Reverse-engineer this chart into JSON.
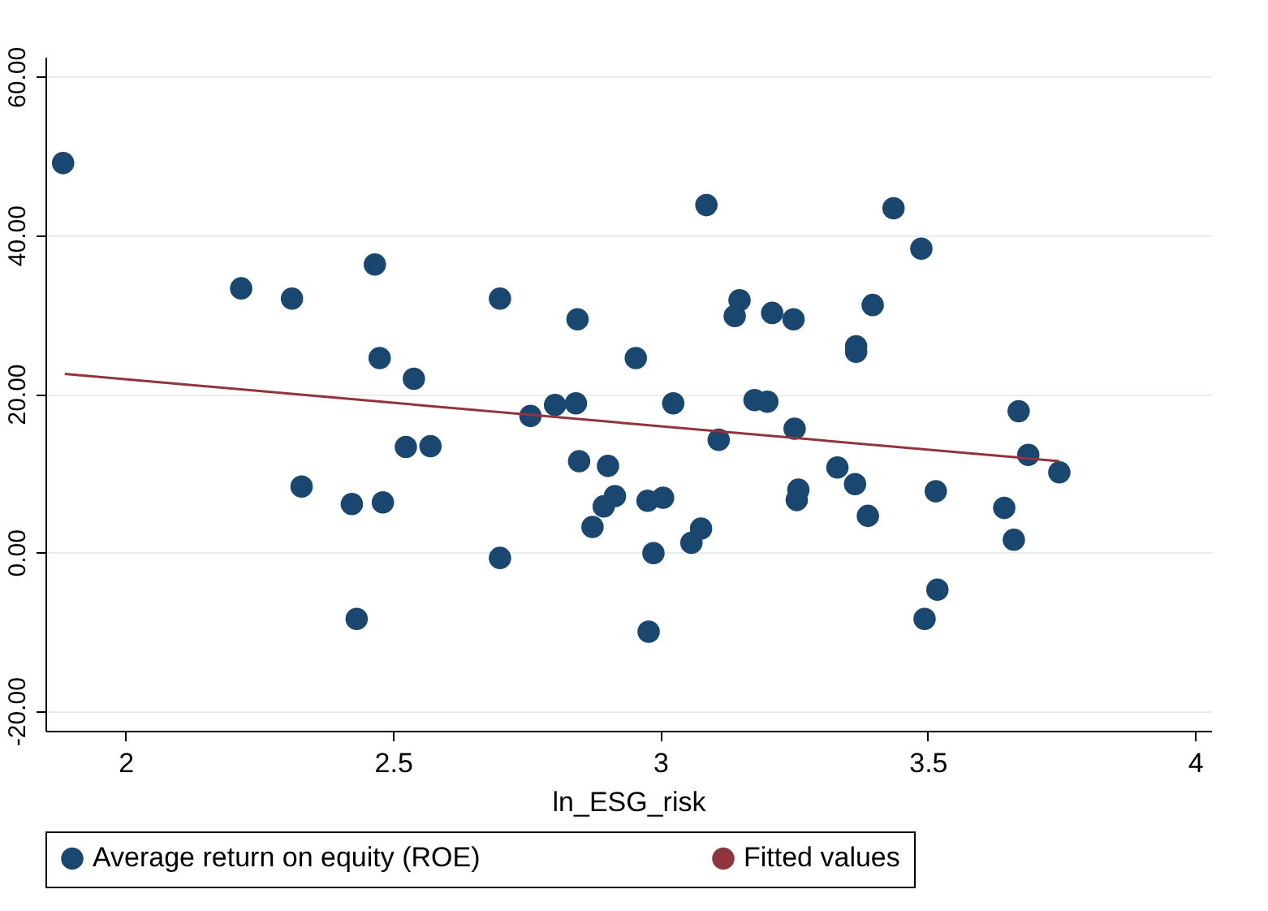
{
  "chart_data": {
    "type": "scatter",
    "xlabel": "ln_ESG_risk",
    "xlim": [
      1.85,
      4.03
    ],
    "ylim": [
      -22.5,
      62.5
    ],
    "xticks": [
      2,
      2.5,
      3,
      3.5,
      4
    ],
    "yticks": [
      {
        "value": -20,
        "label": "-20.00"
      },
      {
        "value": 0,
        "label": "0.00"
      },
      {
        "value": 20,
        "label": "20.00"
      },
      {
        "value": 40,
        "label": "40.00"
      },
      {
        "value": 60,
        "label": "60.00"
      }
    ],
    "grid": "y",
    "legend": "bottom",
    "series": [
      {
        "name": "Average return on equity (ROE)",
        "color": "#1a476f",
        "marker": "circle",
        "x": [
          1.883,
          2.216,
          2.311,
          2.329,
          2.423,
          2.432,
          2.466,
          2.475,
          2.481,
          2.539,
          2.524,
          2.57,
          2.7,
          2.7,
          2.757,
          2.803,
          2.842,
          2.845,
          2.848,
          2.873,
          2.894,
          2.902,
          2.915,
          2.954,
          2.976,
          2.978,
          2.987,
          3.005,
          3.024,
          3.058,
          3.076,
          3.109,
          3.086,
          3.148,
          3.139,
          3.209,
          3.249,
          3.176,
          3.2,
          3.251,
          3.258,
          3.255,
          3.366,
          3.366,
          3.397,
          3.436,
          3.488,
          3.331,
          3.364,
          3.388,
          3.515,
          3.518,
          3.494,
          3.643,
          3.661,
          3.67,
          3.688,
          3.746
        ],
        "values": [
          49.1,
          33.3,
          32.0,
          8.3,
          6.1,
          -8.4,
          36.3,
          24.5,
          6.3,
          21.9,
          13.3,
          13.4,
          32.0,
          -0.7,
          17.2,
          18.6,
          18.8,
          29.4,
          11.5,
          3.2,
          5.8,
          10.9,
          7.1,
          24.5,
          6.5,
          -10.0,
          -0.1,
          6.9,
          18.8,
          1.2,
          3.0,
          14.2,
          43.8,
          31.8,
          29.8,
          30.2,
          29.4,
          19.2,
          19.0,
          15.6,
          7.9,
          6.6,
          26.0,
          25.3,
          31.2,
          43.4,
          38.3,
          10.7,
          8.6,
          4.6,
          7.7,
          -4.7,
          -8.4,
          5.6,
          1.6,
          17.8,
          12.3,
          10.1
        ]
      },
      {
        "name": "Fitted values",
        "color": "#90353b",
        "type": "line",
        "line_style": "solid",
        "x": [
          1.886,
          3.746
        ],
        "values": [
          22.5,
          11.5
        ]
      }
    ]
  }
}
